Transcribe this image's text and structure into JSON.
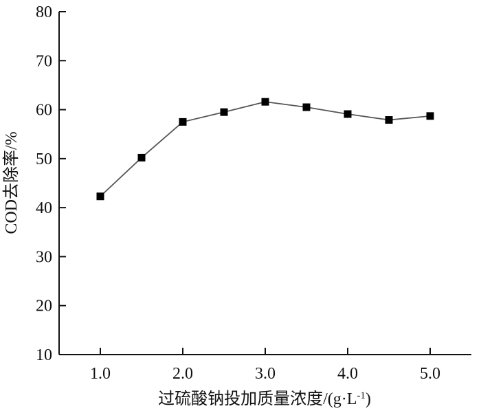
{
  "chart_data": {
    "type": "line",
    "title": "",
    "xlabel": "过硫酸钠投加质量浓度/(g·L",
    "xlabel_sup": "-1",
    "xlabel_tail": ")",
    "ylabel": "COD去除率/%",
    "xlim": [
      0.5,
      5.5
    ],
    "ylim": [
      10,
      80
    ],
    "x_ticks": [
      1.0,
      2.0,
      3.0,
      4.0,
      5.0
    ],
    "x_tick_labels": [
      "1.0",
      "2.0",
      "3.0",
      "4.0",
      "5.0"
    ],
    "y_ticks": [
      10,
      20,
      30,
      40,
      50,
      60,
      70,
      80
    ],
    "y_tick_labels": [
      "10",
      "20",
      "30",
      "40",
      "50",
      "60",
      "70",
      "80"
    ],
    "grid": false,
    "legend": "none",
    "series": [
      {
        "x": [
          1.0,
          1.5,
          2.0,
          2.5,
          3.0,
          3.5,
          4.0,
          4.5,
          5.0
        ],
        "y": [
          42.3,
          50.2,
          57.5,
          59.5,
          61.6,
          60.5,
          59.1,
          57.9,
          58.7
        ],
        "color": "#000000",
        "line_color": "#555555",
        "marker": "square"
      }
    ]
  }
}
